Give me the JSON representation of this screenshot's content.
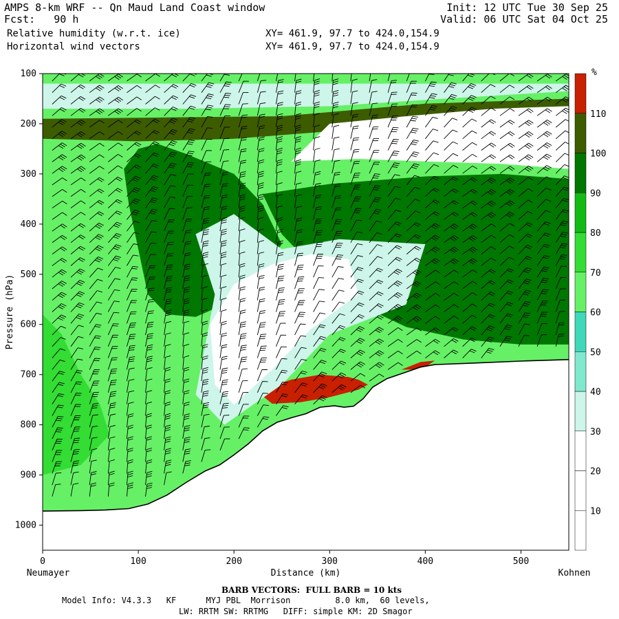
{
  "header": {
    "title": "AMPS 8-km WRF -- Qn Maud Land Coast window",
    "fcst": "Fcst:   90 h",
    "init": "Init: 12 UTC Tue 30 Sep 25",
    "valid": "Valid: 06 UTC Sat 04 Oct 25",
    "field1": "Relative humidity (w.r.t. ice)",
    "field2": "Horizontal wind vectors",
    "xy1": "XY= 461.9, 97.7 to 424.0,154.9",
    "xy2": "XY= 461.9, 97.7 to 424.0,154.9"
  },
  "footer": {
    "barb_note": "BARB VECTORS:  FULL BARB = 10 kts",
    "model_info": "Model Info: V4.3.3   KF      MYJ PBL  Morrison         8.0 km,  60 levels,",
    "model_info2": "LW: RRTM SW: RRTMG   DIFF: simple KM: 2D Smagor"
  },
  "chart_data": {
    "type": "heatmap",
    "ylabel": "Pressure (hPa)",
    "xlabel": "Distance (km)",
    "x_start_label": "Neumayer",
    "x_end_label": "Kohnen",
    "xlim": [
      0,
      550
    ],
    "ylim": [
      1050,
      100
    ],
    "x_ticks": [
      0,
      100,
      200,
      300,
      400,
      500
    ],
    "x_tick_labels": [
      "0",
      "100",
      "200",
      "300",
      "400",
      "500"
    ],
    "y_ticks": [
      100,
      200,
      300,
      400,
      500,
      600,
      700,
      800,
      900,
      1000
    ],
    "y_tick_labels": [
      "100",
      "200",
      "300",
      "400",
      "500",
      "600",
      "700",
      "800",
      "900",
      "1000"
    ],
    "colorbar": {
      "unit": "%",
      "levels": [
        10,
        20,
        30,
        40,
        50,
        60,
        70,
        80,
        90,
        100,
        110
      ],
      "level_labels": [
        "10",
        "20",
        "30",
        "40",
        "50",
        "60",
        "70",
        "80",
        "90",
        "100",
        "110"
      ],
      "colors": [
        "#ffffff",
        "#ffffff",
        "#ffffff",
        "#cdf5ea",
        "#80e8cf",
        "#3fd8b8",
        "#66f066",
        "#33dd33",
        "#11bb11",
        "#007700",
        "#3d5c00",
        "#c82000"
      ]
    },
    "terrain_surface_hpa": [
      [
        0,
        972
      ],
      [
        40,
        971
      ],
      [
        65,
        970
      ],
      [
        90,
        967
      ],
      [
        110,
        958
      ],
      [
        130,
        940
      ],
      [
        150,
        915
      ],
      [
        170,
        892
      ],
      [
        185,
        880
      ],
      [
        200,
        860
      ],
      [
        215,
        838
      ],
      [
        230,
        812
      ],
      [
        245,
        795
      ],
      [
        260,
        786
      ],
      [
        275,
        778
      ],
      [
        290,
        765
      ],
      [
        305,
        762
      ],
      [
        315,
        765
      ],
      [
        325,
        763
      ],
      [
        335,
        748
      ],
      [
        345,
        725
      ],
      [
        360,
        708
      ],
      [
        380,
        695
      ],
      [
        395,
        685
      ],
      [
        410,
        680
      ],
      [
        450,
        677
      ],
      [
        500,
        673
      ],
      [
        550,
        670
      ]
    ],
    "rh_regions": [
      {
        "level": 110,
        "pct": 105,
        "polygon": [
          [
            0,
            190
          ],
          [
            250,
            185
          ],
          [
            400,
            160
          ],
          [
            550,
            150
          ],
          [
            550,
            165
          ],
          [
            500,
            168
          ],
          [
            420,
            185
          ],
          [
            300,
            215
          ],
          [
            200,
            230
          ],
          [
            100,
            235
          ],
          [
            0,
            230
          ]
        ]
      },
      {
        "level": 100,
        "pct": 95,
        "polygon": [
          [
            230,
            340
          ],
          [
            300,
            320
          ],
          [
            400,
            305
          ],
          [
            480,
            300
          ],
          [
            550,
            310
          ],
          [
            550,
            640
          ],
          [
            500,
            640
          ],
          [
            440,
            630
          ],
          [
            380,
            605
          ],
          [
            330,
            560
          ],
          [
            290,
            500
          ],
          [
            250,
            420
          ]
        ]
      },
      {
        "level": 100,
        "pct": 95,
        "polygon": [
          [
            100,
            250
          ],
          [
            120,
            240
          ],
          [
            150,
            260
          ],
          [
            200,
            300
          ],
          [
            230,
            360
          ],
          [
            250,
            440
          ],
          [
            220,
            520
          ],
          [
            190,
            560
          ],
          [
            160,
            585
          ],
          [
            130,
            580
          ],
          [
            110,
            540
          ],
          [
            100,
            450
          ],
          [
            90,
            360
          ],
          [
            85,
            290
          ]
        ]
      },
      {
        "level": 110,
        "pct": 115,
        "polygon": [
          [
            225,
            735
          ],
          [
            240,
            722
          ],
          [
            260,
            710
          ],
          [
            290,
            700
          ],
          [
            320,
            705
          ],
          [
            330,
            710
          ],
          [
            340,
            720
          ],
          [
            330,
            730
          ],
          [
            300,
            745
          ],
          [
            270,
            755
          ],
          [
            240,
            758
          ]
        ]
      },
      {
        "level": 110,
        "pct": 115,
        "polygon": [
          [
            375,
            690
          ],
          [
            395,
            675
          ],
          [
            410,
            672
          ],
          [
            400,
            685
          ],
          [
            385,
            690
          ]
        ]
      },
      {
        "level": 80,
        "pct": 75,
        "polygon": [
          [
            0,
            580
          ],
          [
            20,
            620
          ],
          [
            40,
            700
          ],
          [
            60,
            760
          ],
          [
            70,
            820
          ],
          [
            40,
            880
          ],
          [
            0,
            900
          ]
        ]
      },
      {
        "level": 40,
        "pct": 35,
        "polygon": [
          [
            160,
            420
          ],
          [
            200,
            380
          ],
          [
            250,
            450
          ],
          [
            310,
            430
          ],
          [
            400,
            440
          ],
          [
            380,
            560
          ],
          [
            300,
            620
          ],
          [
            250,
            720
          ],
          [
            190,
            800
          ],
          [
            160,
            740
          ],
          [
            170,
            640
          ],
          [
            180,
            540
          ]
        ]
      },
      {
        "level": 20,
        "pct": 15,
        "polygon": [
          [
            175,
            600
          ],
          [
            200,
            520
          ],
          [
            240,
            480
          ],
          [
            280,
            460
          ],
          [
            320,
            470
          ],
          [
            330,
            540
          ],
          [
            280,
            610
          ],
          [
            240,
            690
          ],
          [
            200,
            760
          ],
          [
            180,
            720
          ]
        ]
      },
      {
        "level": 30,
        "pct": 25,
        "polygon": [
          [
            300,
            200
          ],
          [
            380,
            185
          ],
          [
            470,
            170
          ],
          [
            550,
            165
          ],
          [
            550,
            290
          ],
          [
            480,
            280
          ],
          [
            400,
            275
          ],
          [
            330,
            270
          ],
          [
            260,
            275
          ]
        ]
      },
      {
        "level": 40,
        "pct": 35,
        "polygon": [
          [
            0,
            120
          ],
          [
            550,
            120
          ],
          [
            550,
            135
          ],
          [
            420,
            150
          ],
          [
            300,
            165
          ],
          [
            150,
            170
          ],
          [
            0,
            170
          ]
        ]
      }
    ],
    "wind_barb_note": "Wind barbs drawn in black; full barb = 10 kts"
  }
}
